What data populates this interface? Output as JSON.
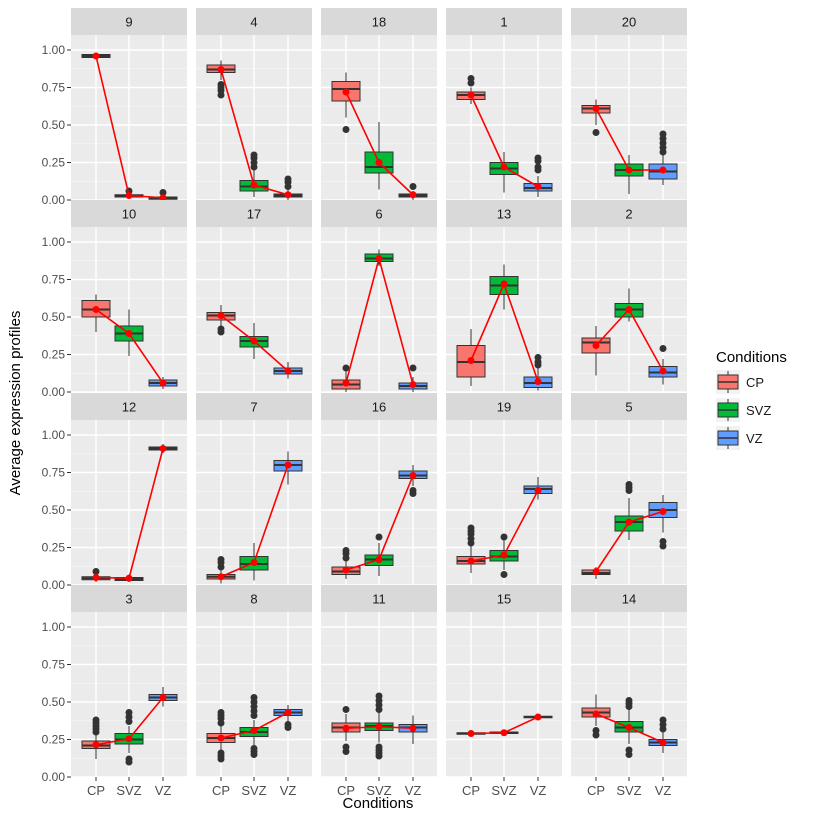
{
  "chart_data": {
    "type": "boxplot",
    "facet_layout": "5 columns x 4 rows",
    "xlabel": "Conditions",
    "ylabel": "Average expression profiles",
    "ylim": [
      0,
      1.1
    ],
    "yticks": [
      0,
      0.25,
      0.5,
      0.75,
      1
    ],
    "ytick_labels": [
      "0.00",
      "0.25",
      "0.50",
      "0.75",
      "1.00"
    ],
    "categories": [
      "CP",
      "SVZ",
      "VZ"
    ],
    "legend": {
      "title": "Conditions",
      "position": "right",
      "entries": [
        {
          "label": "CP",
          "color": "#F8766D"
        },
        {
          "label": "SVZ",
          "color": "#00BA38"
        },
        {
          "label": "VZ",
          "color": "#619CFF"
        }
      ]
    },
    "mean_line_color": "#FF0000",
    "panels": [
      {
        "label": "9",
        "means": [
          0.96,
          0.03,
          0.015
        ],
        "boxes": [
          {
            "q1": 0.95,
            "med": 0.96,
            "q3": 0.97,
            "lo": 0.94,
            "hi": 0.98,
            "out": []
          },
          {
            "q1": 0.02,
            "med": 0.03,
            "q3": 0.035,
            "lo": 0.01,
            "hi": 0.04,
            "out": [
              0.06
            ]
          },
          {
            "q1": 0.005,
            "med": 0.01,
            "q3": 0.02,
            "lo": 0.0,
            "hi": 0.03,
            "out": [
              0.05
            ]
          }
        ]
      },
      {
        "label": "4",
        "means": [
          0.87,
          0.1,
          0.035
        ],
        "boxes": [
          {
            "q1": 0.85,
            "med": 0.87,
            "q3": 0.9,
            "lo": 0.8,
            "hi": 0.93,
            "out": [
              0.7,
              0.73,
              0.75,
              0.77
            ]
          },
          {
            "q1": 0.06,
            "med": 0.09,
            "q3": 0.13,
            "lo": 0.02,
            "hi": 0.2,
            "out": [
              0.22,
              0.25,
              0.28,
              0.3
            ]
          },
          {
            "q1": 0.02,
            "med": 0.03,
            "q3": 0.04,
            "lo": 0.0,
            "hi": 0.07,
            "out": [
              0.09,
              0.12,
              0.14
            ]
          }
        ]
      },
      {
        "label": "18",
        "means": [
          0.72,
          0.25,
          0.035
        ],
        "boxes": [
          {
            "q1": 0.66,
            "med": 0.74,
            "q3": 0.79,
            "lo": 0.55,
            "hi": 0.85,
            "out": [
              0.47
            ]
          },
          {
            "q1": 0.18,
            "med": 0.22,
            "q3": 0.32,
            "lo": 0.07,
            "hi": 0.52,
            "out": []
          },
          {
            "q1": 0.02,
            "med": 0.03,
            "q3": 0.04,
            "lo": 0.0,
            "hi": 0.06,
            "out": [
              0.09
            ]
          }
        ]
      },
      {
        "label": "1",
        "means": [
          0.7,
          0.22,
          0.09
        ],
        "boxes": [
          {
            "q1": 0.67,
            "med": 0.7,
            "q3": 0.72,
            "lo": 0.64,
            "hi": 0.75,
            "out": [
              0.78,
              0.81
            ]
          },
          {
            "q1": 0.17,
            "med": 0.21,
            "q3": 0.25,
            "lo": 0.05,
            "hi": 0.32,
            "out": []
          },
          {
            "q1": 0.06,
            "med": 0.08,
            "q3": 0.11,
            "lo": 0.02,
            "hi": 0.16,
            "out": [
              0.2,
              0.22,
              0.26,
              0.28
            ]
          }
        ]
      },
      {
        "label": "20",
        "means": [
          0.61,
          0.2,
          0.2
        ],
        "boxes": [
          {
            "q1": 0.58,
            "med": 0.61,
            "q3": 0.63,
            "lo": 0.5,
            "hi": 0.67,
            "out": [
              0.45
            ]
          },
          {
            "q1": 0.16,
            "med": 0.2,
            "q3": 0.24,
            "lo": 0.04,
            "hi": 0.3,
            "out": []
          },
          {
            "q1": 0.14,
            "med": 0.19,
            "q3": 0.24,
            "lo": 0.1,
            "hi": 0.3,
            "out": [
              0.32,
              0.35,
              0.38,
              0.41,
              0.44
            ]
          }
        ]
      },
      {
        "label": "10",
        "means": [
          0.55,
          0.39,
          0.06
        ],
        "boxes": [
          {
            "q1": 0.5,
            "med": 0.55,
            "q3": 0.61,
            "lo": 0.4,
            "hi": 0.65,
            "out": []
          },
          {
            "q1": 0.34,
            "med": 0.39,
            "q3": 0.44,
            "lo": 0.24,
            "hi": 0.55,
            "out": []
          },
          {
            "q1": 0.04,
            "med": 0.06,
            "q3": 0.08,
            "lo": 0.02,
            "hi": 0.1,
            "out": []
          }
        ]
      },
      {
        "label": "17",
        "means": [
          0.51,
          0.34,
          0.14
        ],
        "boxes": [
          {
            "q1": 0.48,
            "med": 0.51,
            "q3": 0.53,
            "lo": 0.44,
            "hi": 0.58,
            "out": [
              0.4,
              0.42
            ]
          },
          {
            "q1": 0.3,
            "med": 0.34,
            "q3": 0.37,
            "lo": 0.22,
            "hi": 0.46,
            "out": []
          },
          {
            "q1": 0.12,
            "med": 0.14,
            "q3": 0.16,
            "lo": 0.09,
            "hi": 0.2,
            "out": []
          }
        ]
      },
      {
        "label": "6",
        "means": [
          0.06,
          0.89,
          0.05
        ],
        "boxes": [
          {
            "q1": 0.02,
            "med": 0.05,
            "q3": 0.08,
            "lo": 0.0,
            "hi": 0.14,
            "out": [
              0.16
            ]
          },
          {
            "q1": 0.87,
            "med": 0.89,
            "q3": 0.92,
            "lo": 0.84,
            "hi": 0.95,
            "out": []
          },
          {
            "q1": 0.02,
            "med": 0.04,
            "q3": 0.06,
            "lo": 0.0,
            "hi": 0.1,
            "out": [
              0.16
            ]
          }
        ]
      },
      {
        "label": "13",
        "means": [
          0.21,
          0.72,
          0.07
        ],
        "boxes": [
          {
            "q1": 0.1,
            "med": 0.2,
            "q3": 0.31,
            "lo": 0.04,
            "hi": 0.42,
            "out": []
          },
          {
            "q1": 0.65,
            "med": 0.71,
            "q3": 0.77,
            "lo": 0.55,
            "hi": 0.85,
            "out": []
          },
          {
            "q1": 0.03,
            "med": 0.06,
            "q3": 0.1,
            "lo": 0.01,
            "hi": 0.16,
            "out": [
              0.18,
              0.2,
              0.23
            ]
          }
        ]
      },
      {
        "label": "2",
        "means": [
          0.31,
          0.55,
          0.14
        ],
        "boxes": [
          {
            "q1": 0.26,
            "med": 0.33,
            "q3": 0.36,
            "lo": 0.11,
            "hi": 0.44,
            "out": []
          },
          {
            "q1": 0.5,
            "med": 0.55,
            "q3": 0.59,
            "lo": 0.47,
            "hi": 0.69,
            "out": []
          },
          {
            "q1": 0.1,
            "med": 0.13,
            "q3": 0.17,
            "lo": 0.05,
            "hi": 0.22,
            "out": [
              0.29
            ]
          }
        ]
      },
      {
        "label": "12",
        "means": [
          0.05,
          0.045,
          0.91
        ],
        "boxes": [
          {
            "q1": 0.035,
            "med": 0.045,
            "q3": 0.055,
            "lo": 0.02,
            "hi": 0.07,
            "out": [
              0.09
            ]
          },
          {
            "q1": 0.03,
            "med": 0.04,
            "q3": 0.05,
            "lo": 0.02,
            "hi": 0.07,
            "out": []
          },
          {
            "q1": 0.9,
            "med": 0.91,
            "q3": 0.92,
            "lo": 0.88,
            "hi": 0.94,
            "out": []
          }
        ]
      },
      {
        "label": "7",
        "means": [
          0.055,
          0.15,
          0.8
        ],
        "boxes": [
          {
            "q1": 0.04,
            "med": 0.055,
            "q3": 0.07,
            "lo": 0.01,
            "hi": 0.1,
            "out": [
              0.12,
              0.15,
              0.17
            ]
          },
          {
            "q1": 0.1,
            "med": 0.14,
            "q3": 0.19,
            "lo": 0.03,
            "hi": 0.28,
            "out": []
          },
          {
            "q1": 0.76,
            "med": 0.8,
            "q3": 0.83,
            "lo": 0.67,
            "hi": 0.89,
            "out": []
          }
        ]
      },
      {
        "label": "16",
        "means": [
          0.1,
          0.17,
          0.73
        ],
        "boxes": [
          {
            "q1": 0.07,
            "med": 0.09,
            "q3": 0.12,
            "lo": 0.04,
            "hi": 0.16,
            "out": [
              0.18,
              0.21,
              0.23
            ]
          },
          {
            "q1": 0.13,
            "med": 0.17,
            "q3": 0.2,
            "lo": 0.06,
            "hi": 0.28,
            "out": [
              0.32
            ]
          },
          {
            "q1": 0.71,
            "med": 0.73,
            "q3": 0.76,
            "lo": 0.66,
            "hi": 0.8,
            "out": [
              0.61,
              0.63
            ]
          }
        ]
      },
      {
        "label": "19",
        "means": [
          0.16,
          0.2,
          0.63
        ],
        "boxes": [
          {
            "q1": 0.14,
            "med": 0.16,
            "q3": 0.19,
            "lo": 0.08,
            "hi": 0.26,
            "out": [
              0.28,
              0.31,
              0.34,
              0.36,
              0.38
            ]
          },
          {
            "q1": 0.16,
            "med": 0.19,
            "q3": 0.23,
            "lo": 0.1,
            "hi": 0.3,
            "out": [
              0.07,
              0.32
            ]
          },
          {
            "q1": 0.61,
            "med": 0.64,
            "q3": 0.66,
            "lo": 0.57,
            "hi": 0.72,
            "out": []
          }
        ]
      },
      {
        "label": "5",
        "means": [
          0.09,
          0.42,
          0.49
        ],
        "boxes": [
          {
            "q1": 0.07,
            "med": 0.08,
            "q3": 0.1,
            "lo": 0.04,
            "hi": 0.12,
            "out": []
          },
          {
            "q1": 0.36,
            "med": 0.42,
            "q3": 0.46,
            "lo": 0.3,
            "hi": 0.58,
            "out": [
              0.63,
              0.65,
              0.67
            ]
          },
          {
            "q1": 0.45,
            "med": 0.5,
            "q3": 0.55,
            "lo": 0.35,
            "hi": 0.6,
            "out": [
              0.26,
              0.29
            ]
          }
        ]
      },
      {
        "label": "3",
        "means": [
          0.215,
          0.255,
          0.53
        ],
        "boxes": [
          {
            "q1": 0.19,
            "med": 0.21,
            "q3": 0.24,
            "lo": 0.12,
            "hi": 0.28,
            "out": [
              0.3,
              0.32,
              0.34,
              0.36,
              0.38
            ]
          },
          {
            "q1": 0.22,
            "med": 0.25,
            "q3": 0.29,
            "lo": 0.16,
            "hi": 0.34,
            "out": [
              0.1,
              0.12,
              0.37,
              0.4,
              0.43
            ]
          },
          {
            "q1": 0.51,
            "med": 0.53,
            "q3": 0.55,
            "lo": 0.47,
            "hi": 0.6,
            "out": []
          }
        ]
      },
      {
        "label": "8",
        "means": [
          0.26,
          0.31,
          0.43
        ],
        "boxes": [
          {
            "q1": 0.23,
            "med": 0.26,
            "q3": 0.29,
            "lo": 0.17,
            "hi": 0.34,
            "out": [
              0.12,
              0.14,
              0.16,
              0.36,
              0.39,
              0.41,
              0.43
            ]
          },
          {
            "q1": 0.27,
            "med": 0.3,
            "q3": 0.33,
            "lo": 0.2,
            "hi": 0.38,
            "out": [
              0.15,
              0.17,
              0.19,
              0.41,
              0.44,
              0.47,
              0.5,
              0.53
            ]
          },
          {
            "q1": 0.41,
            "med": 0.43,
            "q3": 0.45,
            "lo": 0.37,
            "hi": 0.48,
            "out": [
              0.33,
              0.35
            ]
          }
        ]
      },
      {
        "label": "11",
        "means": [
          0.325,
          0.335,
          0.325
        ],
        "boxes": [
          {
            "q1": 0.3,
            "med": 0.33,
            "q3": 0.36,
            "lo": 0.24,
            "hi": 0.42,
            "out": [
              0.17,
              0.2,
              0.45
            ]
          },
          {
            "q1": 0.31,
            "med": 0.34,
            "q3": 0.36,
            "lo": 0.23,
            "hi": 0.43,
            "out": [
              0.14,
              0.16,
              0.18,
              0.2,
              0.45,
              0.48,
              0.51,
              0.54
            ]
          },
          {
            "q1": 0.3,
            "med": 0.33,
            "q3": 0.35,
            "lo": 0.22,
            "hi": 0.41,
            "out": []
          }
        ]
      },
      {
        "label": "15",
        "means": [
          0.29,
          0.295,
          0.4
        ],
        "boxes": [
          {
            "q1": 0.285,
            "med": 0.29,
            "q3": 0.295,
            "lo": 0.28,
            "hi": 0.3,
            "out": []
          },
          {
            "q1": 0.29,
            "med": 0.295,
            "q3": 0.3,
            "lo": 0.285,
            "hi": 0.305,
            "out": []
          },
          {
            "q1": 0.395,
            "med": 0.4,
            "q3": 0.405,
            "lo": 0.39,
            "hi": 0.41,
            "out": []
          }
        ]
      },
      {
        "label": "14",
        "means": [
          0.42,
          0.33,
          0.23
        ],
        "boxes": [
          {
            "q1": 0.4,
            "med": 0.43,
            "q3": 0.46,
            "lo": 0.34,
            "hi": 0.55,
            "out": [
              0.28,
              0.31
            ]
          },
          {
            "q1": 0.3,
            "med": 0.33,
            "q3": 0.37,
            "lo": 0.22,
            "hi": 0.45,
            "out": [
              0.15,
              0.18,
              0.47,
              0.49,
              0.51
            ]
          },
          {
            "q1": 0.21,
            "med": 0.23,
            "q3": 0.25,
            "lo": 0.16,
            "hi": 0.3,
            "out": [
              0.32,
              0.35,
              0.38
            ]
          }
        ]
      }
    ]
  }
}
